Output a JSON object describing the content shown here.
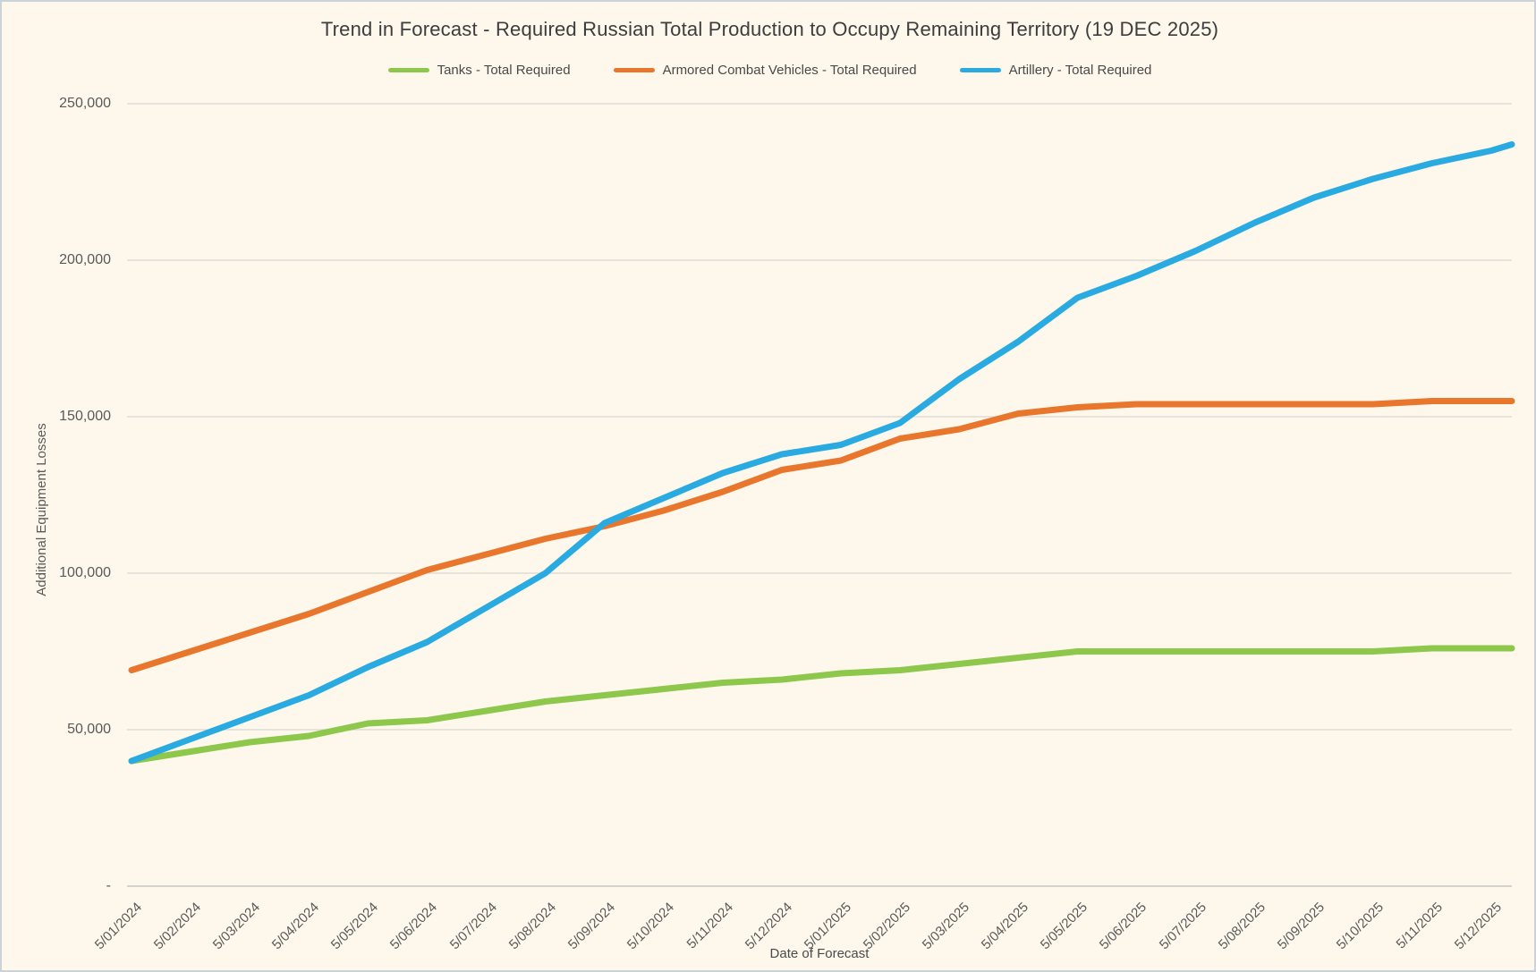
{
  "title": "Trend in Forecast - Required Russian Total Production to Occupy Remaining Territory (19 DEC 2025)",
  "axes": {
    "x_title": "Date of Forecast",
    "y_title": "Additional Equipment Losses",
    "y_tick_labels": [
      "-",
      "50,000",
      "100,000",
      "150,000",
      "200,000",
      "250,000"
    ]
  },
  "chart_data": {
    "type": "line",
    "title": "Trend in Forecast - Required Russian Total Production to Occupy Remaining Territory (19 DEC 2025)",
    "xlabel": "Date of Forecast",
    "ylabel": "Additional Equipment Losses",
    "ylim": [
      0,
      250000
    ],
    "y_tick_step": 50000,
    "grid": true,
    "legend_position": "top-center",
    "x_note": "24 labeled monthly ticks; lines extend to the chart edge at the forecast date (19 DEC 2025)",
    "categories": [
      "5/01/2024",
      "5/02/2024",
      "5/03/2024",
      "5/04/2024",
      "5/05/2024",
      "5/06/2024",
      "5/07/2024",
      "5/08/2024",
      "5/09/2024",
      "5/10/2024",
      "5/11/2024",
      "5/12/2024",
      "5/01/2025",
      "5/02/2025",
      "5/03/2025",
      "5/04/2025",
      "5/05/2025",
      "5/06/2025",
      "5/07/2025",
      "5/08/2025",
      "5/09/2025",
      "5/10/2025",
      "5/11/2025",
      "5/12/2025",
      "12/19/2025"
    ],
    "labeled_tick_count": 24,
    "series": [
      {
        "name": "Tanks - Total Required",
        "color": "#8DC74B",
        "values": [
          40000,
          43000,
          46000,
          48000,
          52000,
          53000,
          56000,
          59000,
          61000,
          63000,
          65000,
          66000,
          68000,
          69000,
          71000,
          73000,
          75000,
          75000,
          75000,
          75000,
          75000,
          75000,
          76000,
          76000,
          76000
        ]
      },
      {
        "name": "Armored Combat Vehicles - Total Required",
        "color": "#E8762D",
        "values": [
          69000,
          75000,
          81000,
          87000,
          94000,
          101000,
          106000,
          111000,
          115000,
          120000,
          126000,
          133000,
          136000,
          143000,
          146000,
          151000,
          153000,
          154000,
          154000,
          154000,
          154000,
          154000,
          155000,
          155000,
          155000
        ]
      },
      {
        "name": "Artillery - Total Required",
        "color": "#29ABE2",
        "values": [
          40000,
          47000,
          54000,
          61000,
          70000,
          78000,
          89000,
          100000,
          116000,
          124000,
          132000,
          138000,
          141000,
          148000,
          162000,
          174000,
          188000,
          195000,
          203000,
          212000,
          220000,
          226000,
          231000,
          235000,
          237000
        ]
      }
    ]
  }
}
